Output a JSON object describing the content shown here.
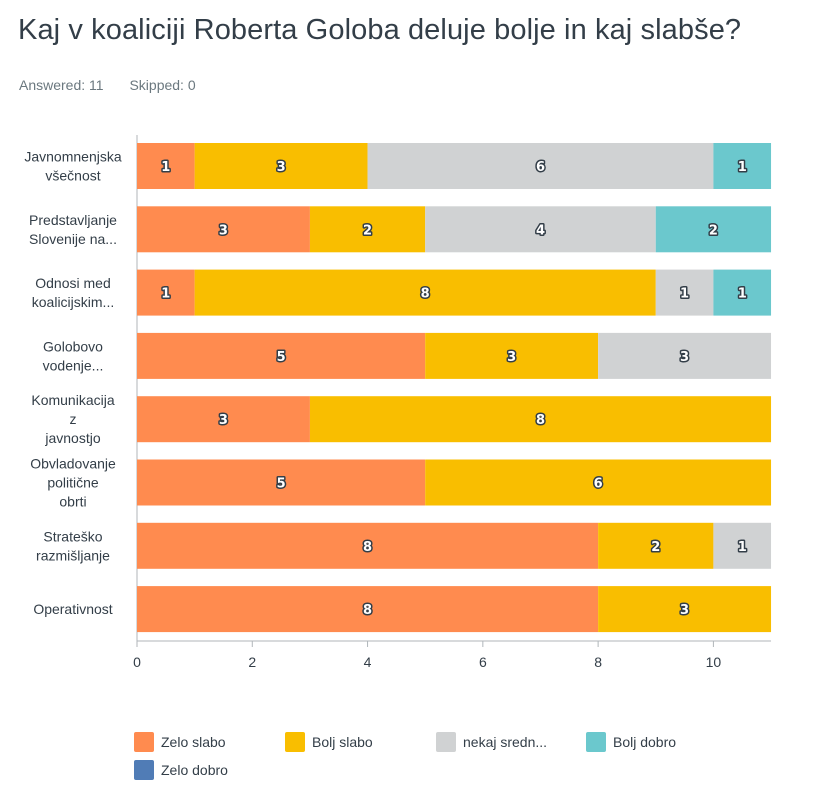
{
  "title": "Kaj v koaliciji Roberta Goloba deluje bolje in kaj slabše?",
  "answered": "Answered: 11",
  "skipped": "Skipped: 0",
  "chart_data": {
    "type": "bar",
    "orientation": "horizontal",
    "stacked": true,
    "categories": [
      [
        "Javnomnenjska",
        "všečnost"
      ],
      [
        "Predstavljanje",
        "Slovenije na..."
      ],
      [
        "Odnosi med",
        "koalicijskim..."
      ],
      [
        "Golobovo",
        "vodenje..."
      ],
      [
        "Komunikacija",
        "z",
        "javnostjo"
      ],
      [
        "Obvladovanje",
        "politične",
        "obrti"
      ],
      [
        "Strateško",
        "razmišljanje"
      ],
      [
        "Operativnost"
      ]
    ],
    "series": [
      {
        "name": "Zelo slabo",
        "color": "#ff8b4f",
        "values": [
          1,
          3,
          1,
          5,
          3,
          5,
          8,
          8
        ]
      },
      {
        "name": "Bolj slabo",
        "color": "#f9be00",
        "values": [
          3,
          2,
          8,
          3,
          8,
          6,
          2,
          3
        ]
      },
      {
        "name": "nekaj sredn...",
        "color": "#d0d2d3",
        "values": [
          6,
          4,
          1,
          3,
          0,
          0,
          1,
          0
        ]
      },
      {
        "name": "Bolj dobro",
        "color": "#6bc8cd",
        "values": [
          1,
          2,
          1,
          0,
          0,
          0,
          0,
          0
        ]
      },
      {
        "name": "Zelo dobro",
        "color": "#507cb6",
        "values": [
          0,
          0,
          0,
          0,
          0,
          0,
          0,
          0
        ]
      }
    ],
    "xlim": [
      0,
      11
    ],
    "xticks": [
      0,
      2,
      4,
      6,
      8,
      10
    ],
    "grid": false,
    "legend_position": "bottom"
  }
}
